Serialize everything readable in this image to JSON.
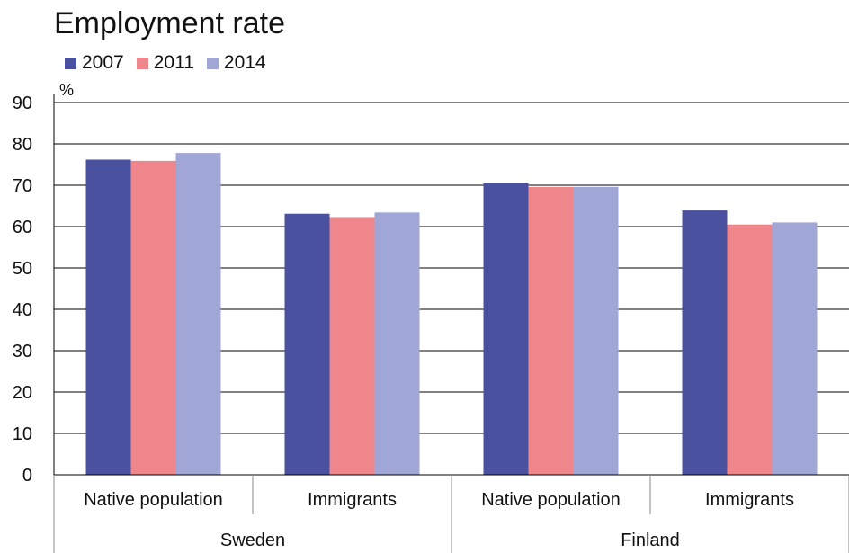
{
  "chart_data": {
    "type": "bar",
    "title": "Employment rate",
    "ylabel": "%",
    "ylim": [
      0,
      90
    ],
    "yticks": [
      0,
      10,
      20,
      30,
      40,
      50,
      60,
      70,
      80,
      90
    ],
    "grid": true,
    "legend_position": "top-left",
    "categories": [
      "Native population",
      "Immigrants",
      "Native population",
      "Immigrants"
    ],
    "groups": [
      {
        "label": "Sweden",
        "span": 2
      },
      {
        "label": "Finland",
        "span": 2
      }
    ],
    "series": [
      {
        "name": "2007",
        "color": "#4a529f",
        "values": [
          76.2,
          63.1,
          70.5,
          63.9
        ]
      },
      {
        "name": "2011",
        "color": "#ee868c",
        "values": [
          75.9,
          62.3,
          69.6,
          60.5
        ]
      },
      {
        "name": "2014",
        "color": "#a0a6d6",
        "values": [
          77.8,
          63.4,
          69.6,
          61.0
        ]
      }
    ]
  }
}
